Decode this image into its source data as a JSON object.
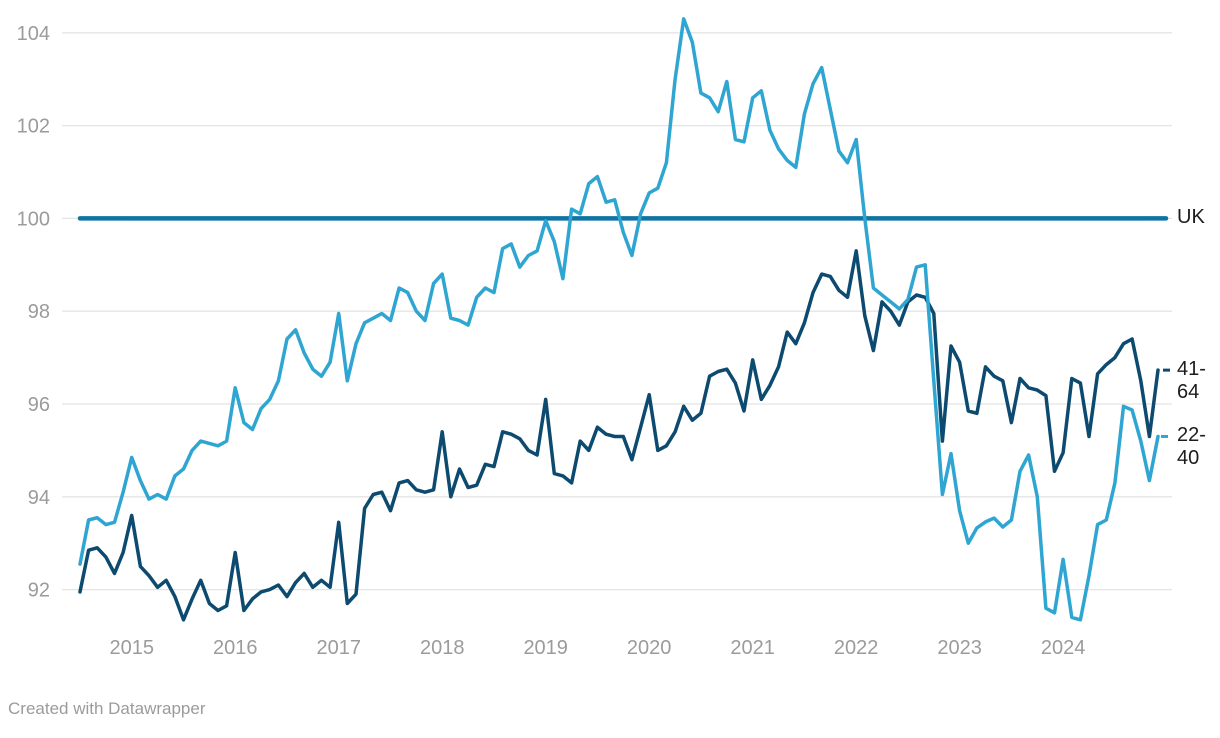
{
  "chart_data": {
    "type": "line",
    "title": "",
    "x_unit": "month",
    "x_range": [
      "2014-07",
      "2024-12"
    ],
    "frequency": "monthly",
    "x_tick_labels": [
      "2015",
      "2016",
      "2017",
      "2018",
      "2019",
      "2020",
      "2021",
      "2022",
      "2023",
      "2024"
    ],
    "y_ticks": [
      92,
      94,
      96,
      98,
      100,
      102,
      104
    ],
    "ylim": [
      91.0,
      104.6
    ],
    "grid": "horizontal",
    "legend_position": "right-end-labels",
    "series": [
      {
        "name": "UK",
        "color": "#0f73a3",
        "constant": 100
      },
      {
        "name": "41-64",
        "color": "#0d4a6f",
        "values": [
          91.95,
          92.85,
          92.9,
          92.7,
          92.35,
          92.8,
          93.6,
          92.5,
          92.3,
          92.05,
          92.2,
          91.85,
          91.35,
          91.8,
          92.2,
          91.7,
          91.55,
          91.65,
          92.8,
          91.55,
          91.8,
          91.95,
          92.0,
          92.1,
          91.85,
          92.15,
          92.35,
          92.05,
          92.2,
          92.05,
          93.45,
          91.7,
          91.9,
          93.75,
          94.05,
          94.1,
          93.7,
          94.3,
          94.35,
          94.15,
          94.1,
          94.15,
          95.4,
          94.0,
          94.6,
          94.2,
          94.25,
          94.7,
          94.65,
          95.4,
          95.35,
          95.25,
          95.0,
          94.9,
          96.1,
          94.5,
          94.45,
          94.3,
          95.2,
          95.0,
          95.5,
          95.35,
          95.3,
          95.3,
          94.8,
          95.5,
          96.2,
          95.0,
          95.1,
          95.4,
          95.95,
          95.65,
          95.8,
          96.6,
          96.7,
          96.75,
          96.45,
          95.85,
          96.95,
          96.1,
          96.4,
          96.8,
          97.55,
          97.3,
          97.75,
          98.4,
          98.8,
          98.75,
          98.45,
          98.3,
          99.3,
          97.9,
          97.15,
          98.2,
          98.0,
          97.7,
          98.2,
          98.35,
          98.3,
          97.95,
          95.2,
          97.25,
          96.9,
          95.85,
          95.8,
          96.8,
          96.6,
          96.5,
          95.6,
          96.55,
          96.35,
          96.3,
          96.18,
          94.55,
          94.95,
          96.55,
          96.45,
          95.3,
          96.65,
          96.85,
          97.0,
          97.3,
          97.4,
          96.5,
          95.3,
          96.73
        ]
      },
      {
        "name": "22-40",
        "color": "#2fa5d2",
        "values": [
          92.55,
          93.5,
          93.55,
          93.4,
          93.45,
          94.1,
          94.85,
          94.35,
          93.95,
          94.05,
          93.95,
          94.45,
          94.6,
          95.0,
          95.2,
          95.15,
          95.1,
          95.2,
          96.35,
          95.6,
          95.45,
          95.9,
          96.1,
          96.5,
          97.4,
          97.6,
          97.1,
          96.75,
          96.6,
          96.9,
          97.95,
          96.5,
          97.3,
          97.75,
          97.85,
          97.95,
          97.8,
          98.5,
          98.4,
          98.0,
          97.8,
          98.6,
          98.8,
          97.85,
          97.8,
          97.7,
          98.3,
          98.5,
          98.4,
          99.35,
          99.45,
          98.95,
          99.2,
          99.3,
          99.95,
          99.5,
          98.7,
          100.2,
          100.1,
          100.75,
          100.9,
          100.35,
          100.4,
          99.7,
          99.2,
          100.1,
          100.55,
          100.65,
          101.2,
          103.0,
          104.3,
          103.8,
          102.7,
          102.6,
          102.3,
          102.95,
          101.7,
          101.65,
          102.6,
          102.75,
          101.9,
          101.5,
          101.25,
          101.1,
          102.25,
          102.9,
          103.25,
          102.35,
          101.45,
          101.2,
          101.7,
          100.0,
          98.5,
          98.35,
          98.2,
          98.05,
          98.25,
          98.95,
          99.0,
          96.5,
          94.05,
          94.93,
          93.7,
          93.0,
          93.33,
          93.46,
          93.54,
          93.35,
          93.5,
          94.55,
          94.9,
          94.0,
          91.6,
          91.5,
          92.65,
          91.4,
          91.35,
          92.3,
          93.4,
          93.5,
          94.3,
          95.95,
          95.87,
          95.2,
          94.35,
          95.3
        ]
      }
    ],
    "colors": {
      "gridline": "#e4e4e4",
      "axis_text": "#9b9b9b",
      "end_label_text": "#1c1c1c"
    }
  },
  "right_labels": [
    {
      "series": "UK",
      "lines": [
        "UK"
      ]
    },
    {
      "series": "41-64",
      "lines": [
        "41-",
        "64"
      ]
    },
    {
      "series": "22-40",
      "lines": [
        "22-",
        "40"
      ]
    }
  ],
  "footer": {
    "credit": "Created with Datawrapper"
  }
}
